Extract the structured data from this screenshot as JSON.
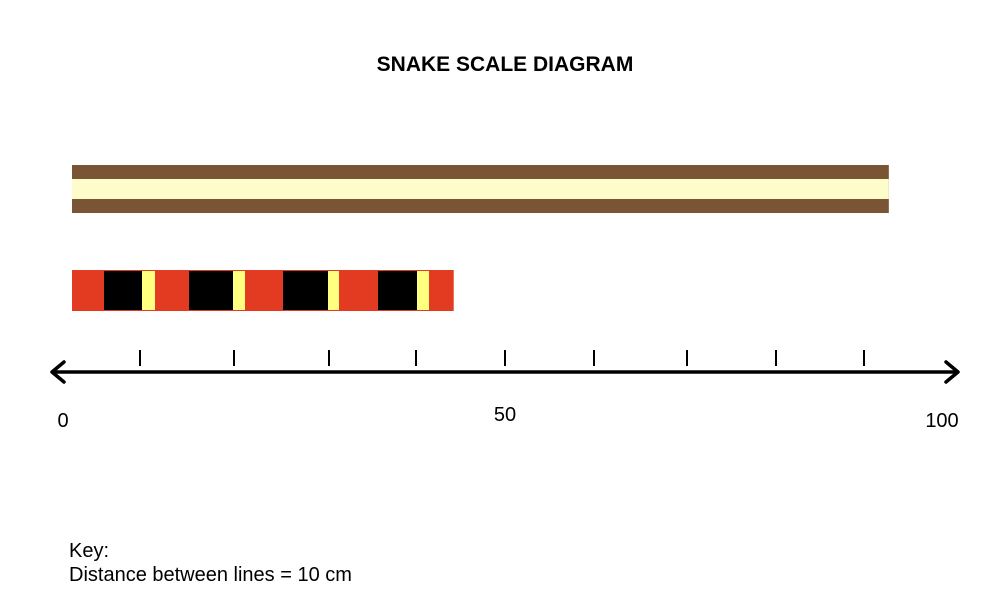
{
  "title": "SNAKE SCALE DIAGRAM",
  "colors": {
    "brown_stripe": "#7a5535",
    "cream_stripe": "#fffccc",
    "red": "#e23b22",
    "black": "#000000",
    "yellow": "#ffff80",
    "axis": "#000000"
  },
  "axis": {
    "min": 0,
    "max": 100,
    "labels": [
      "0",
      "50",
      "100"
    ],
    "tick_count": 9
  },
  "snakes": [
    {
      "pattern": "brown-cream-striped",
      "length": 93
    },
    {
      "pattern": "red-black-yellow-banded",
      "length": 44
    }
  ],
  "key": {
    "heading": "Key:",
    "text": "Distance between lines = 10 cm"
  }
}
